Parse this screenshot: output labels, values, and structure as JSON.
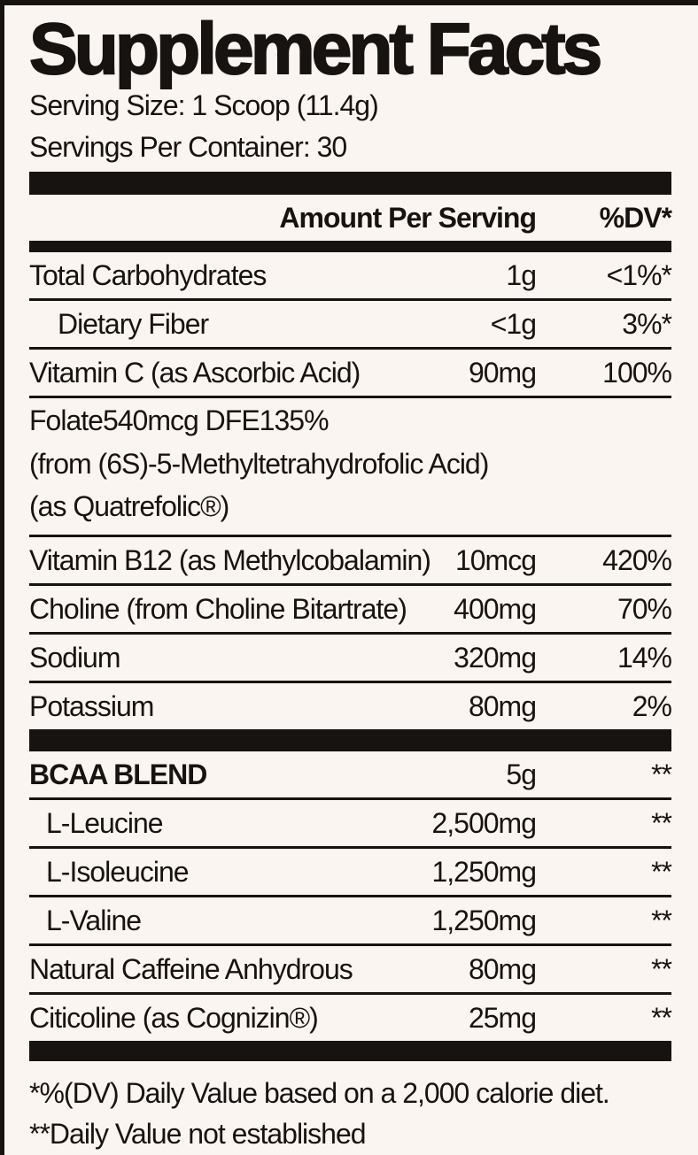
{
  "title": "Supplement Facts",
  "serving": {
    "serving_size": "Serving Size: 1 Scoop (11.4g)",
    "servings_per_container": "Servings Per Container: 30"
  },
  "header": {
    "amount_label": "Amount Per Serving",
    "dv_label": "%DV*"
  },
  "table": {
    "rows": [
      {
        "name": "Total Carbohydrates",
        "amount": "1g",
        "dv": "<1%*"
      },
      {
        "name": "Dietary Fiber",
        "amount": "<1g",
        "dv": "3%*"
      },
      {
        "name": "Vitamin C (as Ascorbic Acid)",
        "amount": "90mg",
        "dv": "100%"
      },
      {
        "name": "Folate",
        "amount": "540mcg DFE",
        "dv": "135%",
        "sub": [
          "(from (6S)-5-Methyltetrahydrofolic Acid)",
          "(as Quatrefolic®)"
        ]
      },
      {
        "name": "Vitamin B12 (as Methylcobalamin)",
        "amount": "10mcg",
        "dv": "420%"
      },
      {
        "name": "Choline (from Choline Bitartrate)",
        "amount": "400mg",
        "dv": "70%"
      },
      {
        "name": "Sodium",
        "amount": "320mg",
        "dv": "14%"
      },
      {
        "name": "Potassium",
        "amount": "80mg",
        "dv": "2%"
      },
      {
        "name": "BCAA BLEND",
        "amount": "5g",
        "dv": "**"
      },
      {
        "name": "L-Leucine",
        "amount": "2,500mg",
        "dv": "**"
      },
      {
        "name": "L-Isoleucine",
        "amount": "1,250mg",
        "dv": "**"
      },
      {
        "name": "L-Valine",
        "amount": "1,250mg",
        "dv": "**"
      },
      {
        "name": "Natural Caffeine Anhydrous",
        "amount": "80mg",
        "dv": "**"
      },
      {
        "name": "Citicoline (as Cognizin®)",
        "amount": "25mg",
        "dv": "**"
      }
    ]
  },
  "footnotes": [
    "*%(DV) Daily Value based on a 2,000 calorie diet.",
    "**Daily Value not established"
  ],
  "colors": {
    "background": "#fbf5f1",
    "ink": "#171310"
  }
}
